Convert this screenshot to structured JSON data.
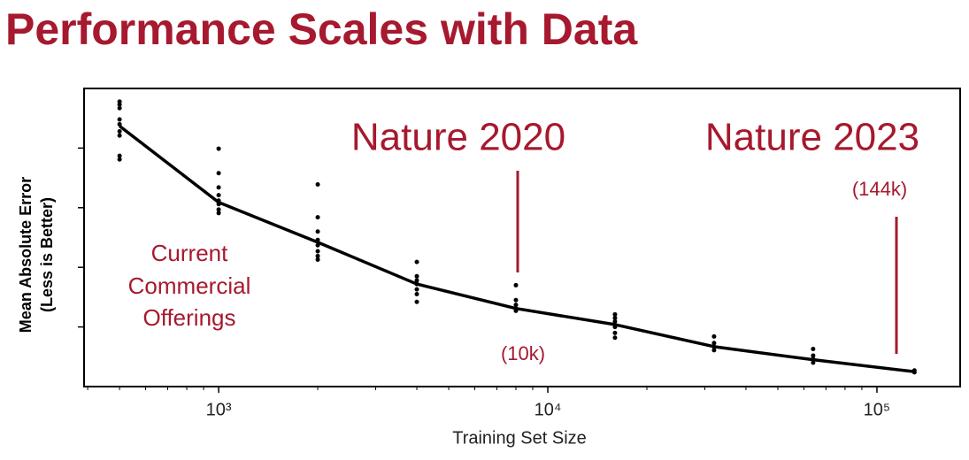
{
  "chart_data": {
    "type": "line",
    "title": "Performance Scales with Data",
    "x_label": "Training Set Size",
    "y_label": [
      "Mean Absolute Error",
      "(Less is Better)"
    ],
    "annotations": {
      "nature_2020": "Nature 2020",
      "size_2020": "(10k)",
      "nature_2023": "Nature 2023",
      "size_2023": "(144k)",
      "commercial": [
        "Current",
        "Commercial",
        "Offerings"
      ]
    },
    "xscale": "log",
    "xlim": [
      390,
      179000
    ],
    "ylim": [
      0,
      5
    ],
    "xticks": [
      {
        "value": 1000,
        "label": "10³"
      },
      {
        "value": 10000,
        "label": "10⁴"
      },
      {
        "value": 100000,
        "label": "10⁵"
      }
    ],
    "xminorticks": [
      400,
      500,
      600,
      700,
      800,
      900,
      2000,
      3000,
      4000,
      5000,
      6000,
      7000,
      8000,
      9000,
      20000,
      30000,
      40000,
      50000,
      60000,
      70000,
      80000,
      90000
    ],
    "yticks": [
      1,
      2,
      3,
      4
    ],
    "series": [
      {
        "type": "line",
        "color": "#000000",
        "x": [
          500,
          1000,
          2000,
          4000,
          8000,
          16000,
          32000,
          64000,
          130000
        ],
        "values": [
          4.37,
          3.09,
          2.42,
          1.72,
          1.31,
          1.04,
          0.67,
          0.45,
          0.25
        ]
      },
      {
        "type": "scatter",
        "color": "#000000",
        "x": [
          500,
          500,
          500,
          500,
          500,
          500,
          500,
          500,
          500,
          1000,
          1000,
          1000,
          1000,
          1000,
          1000,
          1000,
          1000,
          2000,
          2000,
          2000,
          2000,
          2000,
          2000,
          2000,
          2000,
          4000,
          4000,
          4000,
          4000,
          4000,
          4000,
          4000,
          8000,
          8000,
          8000,
          8000,
          8000,
          16000,
          16000,
          16000,
          16000,
          16000,
          16000,
          32000,
          32000,
          32000,
          32000,
          64000,
          64000,
          64000,
          64000,
          130000,
          130000
        ],
        "values": [
          4.78,
          4.73,
          4.67,
          4.48,
          4.4,
          4.28,
          4.21,
          3.87,
          3.81,
          3.99,
          3.58,
          3.34,
          3.21,
          3.12,
          3.06,
          2.97,
          2.91,
          3.39,
          2.84,
          2.6,
          2.46,
          2.37,
          2.27,
          2.19,
          2.13,
          2.09,
          1.85,
          1.78,
          1.72,
          1.63,
          1.55,
          1.42,
          1.7,
          1.45,
          1.37,
          1.31,
          1.27,
          1.21,
          1.15,
          1.09,
          1.0,
          0.9,
          0.82,
          0.84,
          0.73,
          0.67,
          0.61,
          0.63,
          0.52,
          0.46,
          0.4,
          0.27,
          0.24
        ]
      }
    ]
  }
}
